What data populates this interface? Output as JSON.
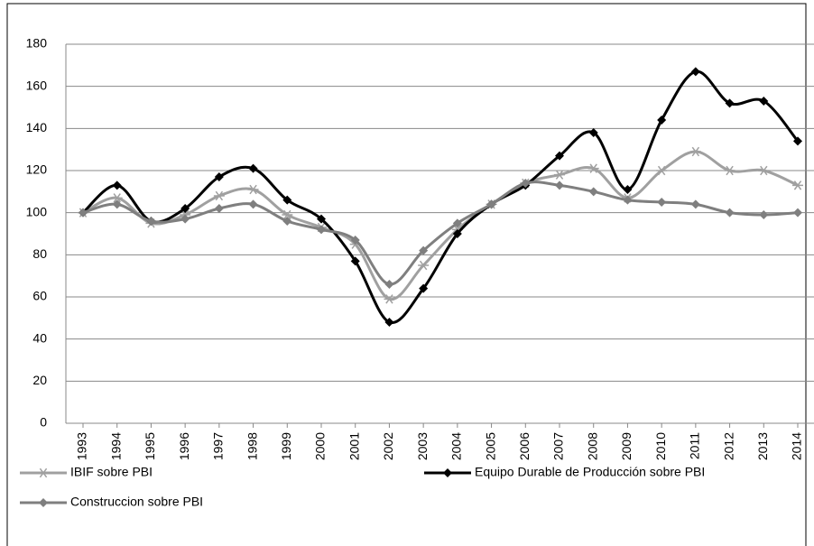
{
  "chart_data": {
    "type": "line",
    "categories": [
      "1993",
      "1994",
      "1995",
      "1996",
      "1997",
      "1998",
      "1999",
      "2000",
      "2001",
      "2002",
      "2003",
      "2004",
      "2005",
      "2006",
      "2007",
      "2008",
      "2009",
      "2010",
      "2011",
      "2012",
      "2013",
      "2014"
    ],
    "series": [
      {
        "name": "IBIF sobre PBI",
        "color": "#a0a0a0",
        "marker": "star",
        "values": [
          100,
          107,
          95,
          99,
          108,
          111,
          99,
          93,
          85,
          59,
          75,
          92,
          104,
          114,
          118,
          121,
          107,
          120,
          129,
          120,
          120,
          113
        ]
      },
      {
        "name": "Equipo Durable de Producción sobre PBI",
        "color": "#000000",
        "marker": "diamond",
        "values": [
          100,
          113,
          96,
          102,
          117,
          121,
          106,
          97,
          77,
          48,
          64,
          90,
          104,
          113,
          127,
          138,
          111,
          144,
          167,
          152,
          153,
          134
        ]
      },
      {
        "name": "Construccion sobre PBI",
        "color": "#7f7f7f",
        "marker": "diamond",
        "values": [
          100,
          104,
          96,
          97,
          102,
          104,
          96,
          92,
          87,
          66,
          82,
          95,
          104,
          114,
          113,
          110,
          106,
          105,
          104,
          100,
          99,
          100
        ]
      }
    ],
    "ylim": [
      0,
      180
    ],
    "yticks": [
      0,
      20,
      40,
      60,
      80,
      100,
      120,
      140,
      160,
      180
    ],
    "grid": true
  }
}
